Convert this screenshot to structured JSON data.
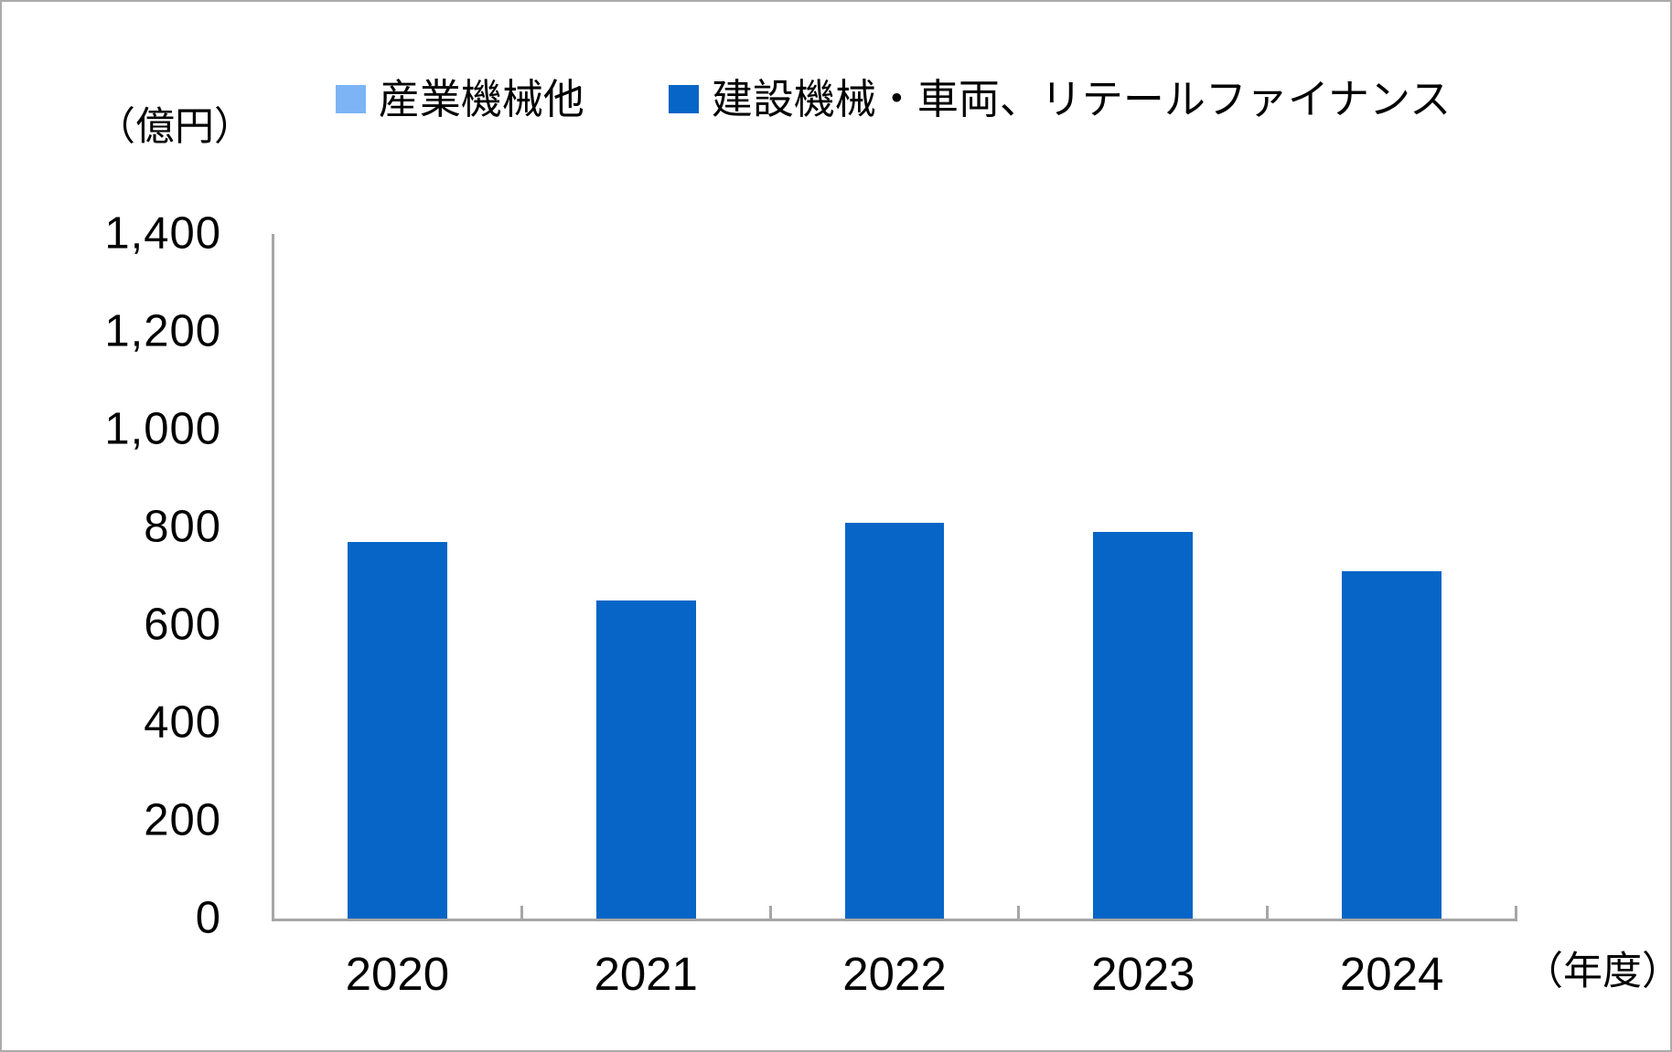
{
  "chart_data": {
    "type": "bar",
    "title": "",
    "categories": [
      "2020",
      "2021",
      "2022",
      "2023",
      "2024"
    ],
    "series": [
      {
        "name": "産業機械他",
        "color": "#7DB4F5",
        "values": [
          0,
          0,
          0,
          0,
          0
        ]
      },
      {
        "name": "建設機械・車両、リテールファイナンス",
        "color": "#0665C6",
        "values": [
          770,
          650,
          810,
          790,
          710
        ]
      }
    ],
    "ylabel": "（億円）",
    "xlabel": "（年度）",
    "ylim": [
      0,
      1400
    ],
    "ytick_step": 200,
    "yticks": [
      "0",
      "200",
      "400",
      "600",
      "800",
      "1,000",
      "1,200",
      "1,400"
    ],
    "grid": false,
    "legend_position": "top-center",
    "axis_color": "#A6A6A6",
    "bar_overlap": "100%"
  }
}
